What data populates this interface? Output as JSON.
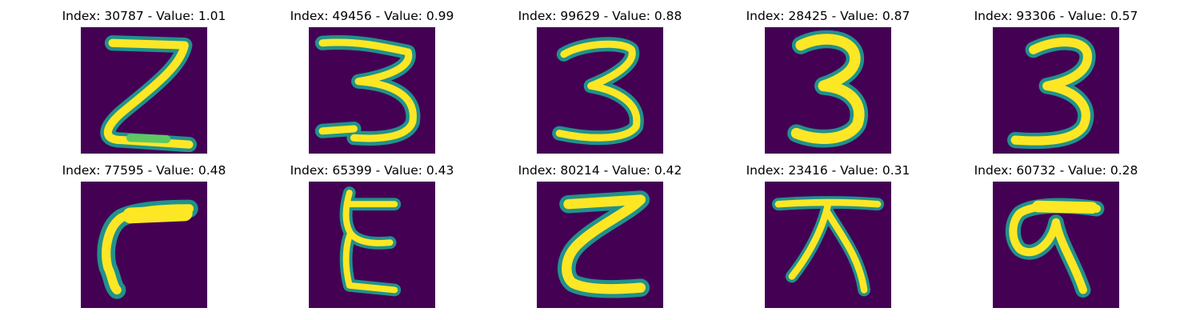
{
  "colors": {
    "background": "#440154",
    "stroke_edge": "#21918c",
    "stroke_mid": "#5ec962",
    "stroke_core": "#fde725"
  },
  "panels": [
    {
      "title": "Index: 30787 - Value: 1.01"
    },
    {
      "title": "Index: 49456 - Value: 0.99"
    },
    {
      "title": "Index: 99629 - Value: 0.88"
    },
    {
      "title": "Index: 28425 - Value: 0.87"
    },
    {
      "title": "Index: 93306 - Value: 0.57"
    },
    {
      "title": "Index: 77595 - Value: 0.48"
    },
    {
      "title": "Index: 65399 - Value: 0.43"
    },
    {
      "title": "Index: 80214 - Value: 0.42"
    },
    {
      "title": "Index: 23416 - Value: 0.31"
    },
    {
      "title": "Index: 60732 - Value: 0.28"
    }
  ]
}
